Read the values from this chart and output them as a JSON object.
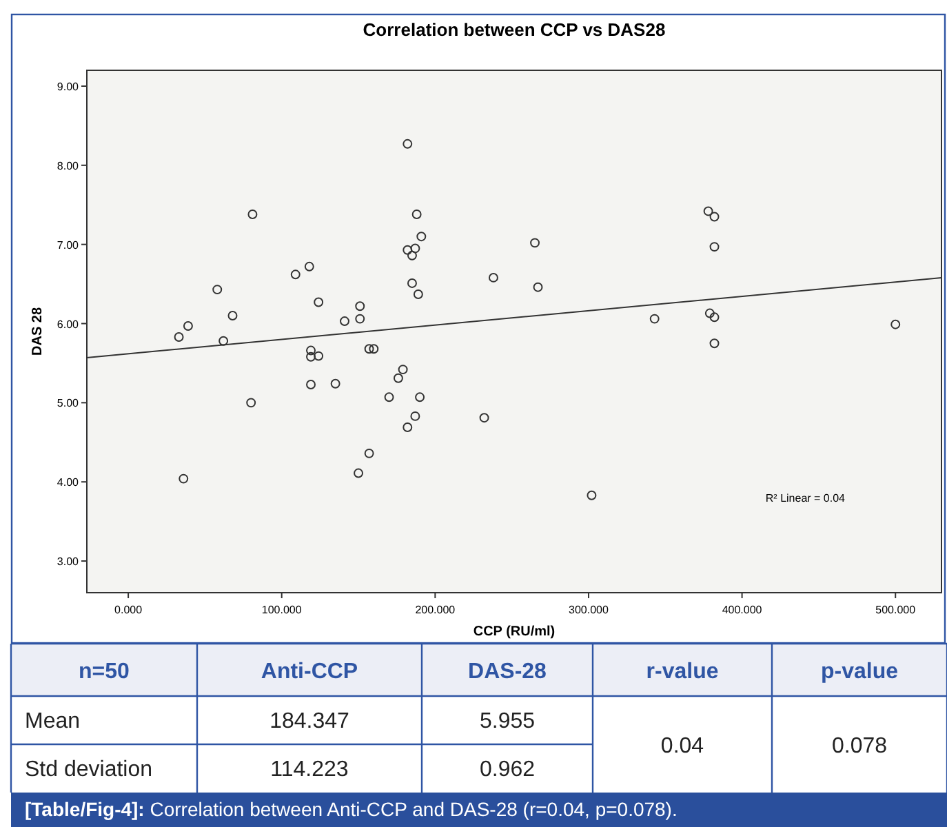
{
  "chart_data": [
    {
      "type": "scatter",
      "title": "Correlation  between  CCP  vs  DAS28",
      "xlabel": "CCP (RU/ml)",
      "ylabel": "DAS 28",
      "xlim": [
        -27,
        530
      ],
      "ylim": [
        2.6,
        9.2
      ],
      "xticks": [
        {
          "value": 0,
          "label": "0.000"
        },
        {
          "value": 100,
          "label": "100.000"
        },
        {
          "value": 200,
          "label": "200.000"
        },
        {
          "value": 300,
          "label": "300.000"
        },
        {
          "value": 400,
          "label": "400.000"
        },
        {
          "value": 500,
          "label": "500.000"
        }
      ],
      "yticks": [
        {
          "value": 3,
          "label": "3.00"
        },
        {
          "value": 4,
          "label": "4.00"
        },
        {
          "value": 5,
          "label": "5.00"
        },
        {
          "value": 6,
          "label": "6.00"
        },
        {
          "value": 7,
          "label": "7.00"
        },
        {
          "value": 8,
          "label": "8.00"
        },
        {
          "value": 9,
          "label": "9.00"
        }
      ],
      "grid": false,
      "marker": "circle",
      "series": [
        {
          "type": "scatter",
          "color": "#333333",
          "x": [
            33,
            39,
            36,
            58,
            62,
            68,
            81,
            80,
            109,
            118,
            124,
            119,
            119,
            124,
            119,
            135,
            141,
            151,
            151,
            150,
            157,
            157,
            160,
            170,
            176,
            179,
            182,
            187,
            190,
            182,
            188,
            191,
            182,
            187,
            185,
            185,
            189,
            238,
            265,
            267,
            232,
            302,
            343,
            378,
            382,
            382,
            379,
            382,
            382,
            500
          ],
          "values": [
            5.83,
            5.97,
            4.04,
            6.43,
            5.78,
            6.1,
            7.38,
            5.0,
            6.62,
            6.72,
            6.27,
            5.66,
            5.58,
            5.59,
            5.23,
            5.24,
            6.03,
            6.22,
            6.06,
            4.11,
            4.36,
            5.68,
            5.68,
            5.07,
            5.31,
            5.42,
            4.69,
            4.83,
            5.07,
            8.27,
            7.38,
            7.1,
            6.93,
            6.95,
            6.86,
            6.51,
            6.37,
            6.58,
            7.02,
            6.46,
            4.81,
            3.83,
            6.06,
            7.42,
            7.35,
            6.97,
            6.13,
            6.08,
            5.75,
            5.99
          ]
        },
        {
          "type": "line",
          "color": "#333333",
          "marker": "none",
          "x": [
            -27,
            530
          ],
          "values": [
            5.57,
            6.58
          ]
        }
      ],
      "annotations": [
        "R² Linear = 0.04"
      ]
    },
    {
      "type": "other",
      "annotations": [
        "n=50",
        "Anti-CCP",
        "DAS-28",
        "r-value",
        "p-value",
        "Mean",
        "184.347",
        "5.955",
        "0.04",
        "0.078",
        "Std deviation",
        "114.223",
        "0.962",
        "[Table/Fig-4]:",
        "Correlation between Anti-CCP and DAS-28 (r=0.04, p=0.078)."
      ]
    }
  ]
}
